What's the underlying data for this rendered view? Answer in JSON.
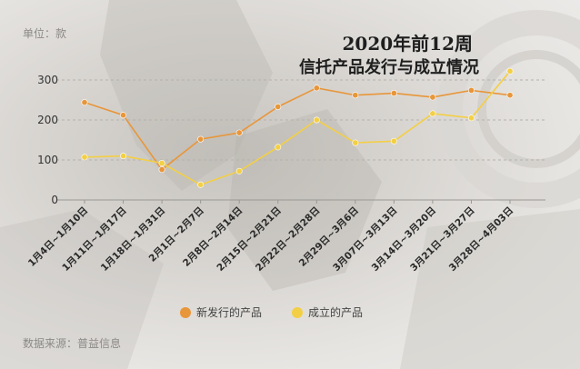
{
  "unit_label": "单位：款",
  "source_label": "数据来源：普益信息",
  "title_line1": "2020年前12周",
  "title_line2": "信托产品发行与成立情况",
  "colors": {
    "issued": "#E8963A",
    "established": "#F3CF45"
  },
  "chart_data": {
    "type": "line",
    "title": "2020年前12周 信托产品发行与成立情况",
    "ylabel": "单位：款",
    "ylim": [
      0,
      300
    ],
    "yticks": [
      0,
      100,
      200,
      300
    ],
    "grid": "horizontal dashed",
    "legend_position": "bottom-center",
    "categories": [
      "1月4日~1月10日",
      "1月11日~1月17日",
      "1月18日~1月31日",
      "2月1日~2月7日",
      "2月8日~2月14日",
      "2月15日~2月21日",
      "2月22日~2月28日",
      "2月29日~3月6日",
      "3月07日~3月13日",
      "3月14日~3月20日",
      "3月21日~3月27日",
      "3月28日~4月03日"
    ],
    "series": [
      {
        "name": "新发行的产品",
        "color": "#E8963A",
        "values": [
          244,
          212,
          76,
          152,
          168,
          233,
          280,
          262,
          267,
          257,
          274,
          262
        ]
      },
      {
        "name": "成立的产品",
        "color": "#F3CF45",
        "values": [
          107,
          110,
          92,
          38,
          72,
          132,
          200,
          143,
          147,
          216,
          205,
          322
        ]
      }
    ]
  }
}
